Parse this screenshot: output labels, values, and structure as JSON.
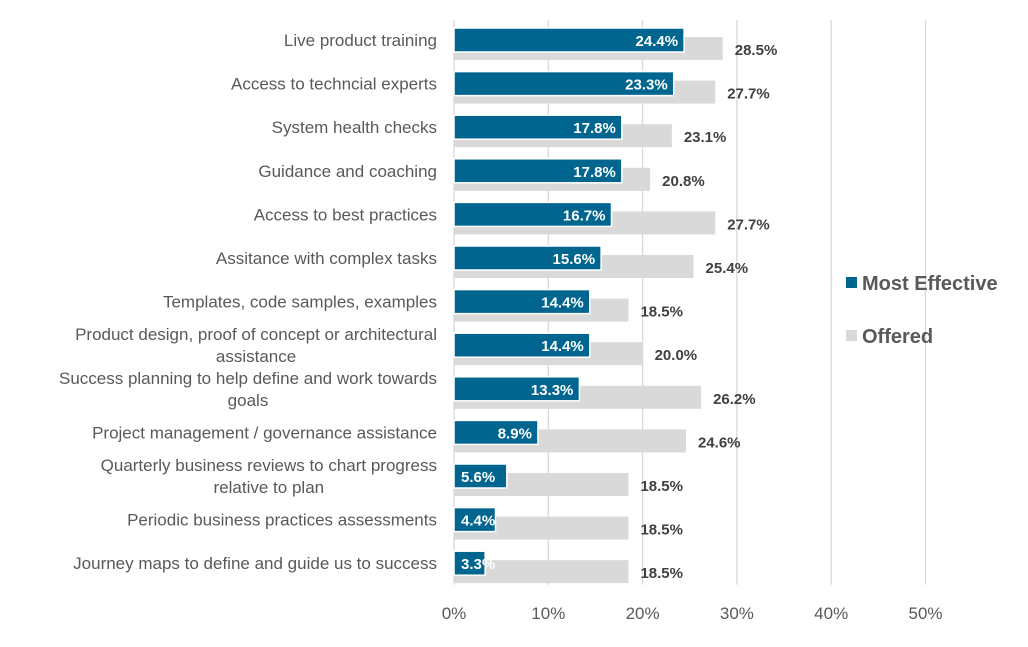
{
  "chart_data": {
    "type": "bar",
    "orientation": "horizontal",
    "title": "",
    "xlabel": "",
    "ylabel": "",
    "xlim": [
      0,
      50
    ],
    "x_ticks": [
      "0%",
      "10%",
      "20%",
      "30%",
      "40%",
      "50%"
    ],
    "grid": true,
    "legend_position": "right",
    "categories": [
      "Live product training",
      "Access to techncial experts",
      "System health checks",
      "Guidance and coaching",
      "Access to best practices",
      "Assitance with complex tasks",
      "Templates, code samples, examples",
      "Product design, proof of concept or architectural assistance",
      "Success planning to help define and work towards goals",
      "Project management / governance assistance",
      "Quarterly business reviews to chart progress relative to plan",
      "Periodic business practices assessments",
      "Journey maps to define and guide us to success"
    ],
    "category_lines": [
      [
        "Live product training"
      ],
      [
        "Access to techncial experts"
      ],
      [
        "System health checks"
      ],
      [
        "Guidance and coaching"
      ],
      [
        "Access to best practices"
      ],
      [
        "Assitance with complex tasks"
      ],
      [
        "Templates, code samples, examples"
      ],
      [
        "Product design, proof of concept or architectural",
        "assistance"
      ],
      [
        "Success planning to help define and work towards",
        "goals"
      ],
      [
        "Project management / governance assistance"
      ],
      [
        "Quarterly business reviews to chart progress",
        "relative to plan"
      ],
      [
        "Periodic business practices assessments"
      ],
      [
        "Journey maps to define and guide us to success"
      ]
    ],
    "series": [
      {
        "name": "Most Effective",
        "color": "#00668f",
        "values": [
          24.4,
          23.3,
          17.8,
          17.8,
          16.7,
          15.6,
          14.4,
          14.4,
          13.3,
          8.9,
          5.6,
          4.4,
          3.3
        ]
      },
      {
        "name": "Offered",
        "color": "#d9d9d9",
        "values": [
          28.5,
          27.7,
          23.1,
          20.8,
          27.7,
          25.4,
          18.5,
          20.0,
          26.2,
          24.6,
          18.5,
          18.5,
          18.5
        ]
      }
    ]
  }
}
